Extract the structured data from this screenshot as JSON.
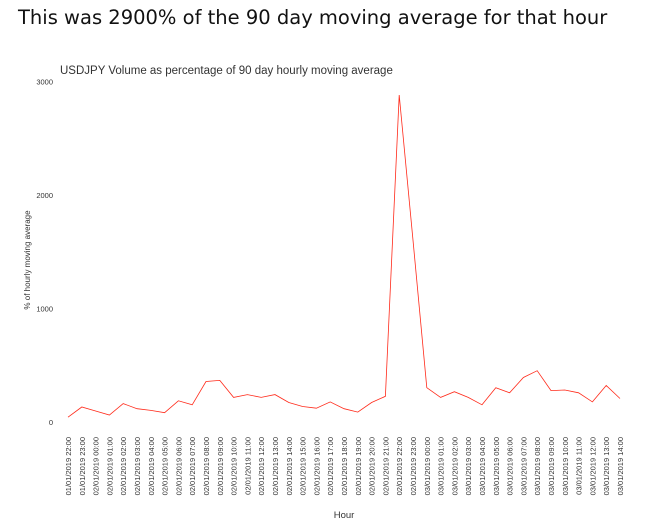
{
  "heading": "This was 2900% of the 90 day moving average for that hour",
  "chart_data": {
    "type": "line",
    "title": "USDJPY Volume as percentage of 90 day hourly moving average",
    "x_label": "Hour",
    "y_label": "% of hourly moving average",
    "categories": [
      "01/01/2019 22:00",
      "01/01/2019 23:00",
      "02/01/2019 00:00",
      "02/01/2019 01:00",
      "02/01/2019 02:00",
      "02/01/2019 03:00",
      "02/01/2019 04:00",
      "02/01/2019 05:00",
      "02/01/2019 06:00",
      "02/01/2019 07:00",
      "02/01/2019 08:00",
      "02/01/2019 09:00",
      "02/01/2019 10:00",
      "02/01/2019 11:00",
      "02/01/2019 12:00",
      "02/01/2019 13:00",
      "02/01/2019 14:00",
      "02/01/2019 15:00",
      "02/01/2019 16:00",
      "02/01/2019 17:00",
      "02/01/2019 18:00",
      "02/01/2019 19:00",
      "02/01/2019 20:00",
      "02/01/2019 21:00",
      "02/01/2019 22:00",
      "02/01/2019 23:00",
      "03/01/2019 00:00",
      "03/01/2019 01:00",
      "03/01/2019 02:00",
      "03/01/2019 03:00",
      "03/01/2019 04:00",
      "03/01/2019 05:00",
      "03/01/2019 06:00",
      "03/01/2019 07:00",
      "03/01/2019 08:00",
      "03/01/2019 09:00",
      "03/01/2019 10:00",
      "03/01/2019 11:00",
      "03/01/2019 12:00",
      "03/01/2019 13:00",
      "03/01/2019 14:00"
    ],
    "values": [
      40,
      130,
      95,
      60,
      160,
      115,
      100,
      80,
      185,
      150,
      355,
      365,
      215,
      240,
      215,
      240,
      170,
      135,
      120,
      175,
      115,
      85,
      170,
      225,
      2880,
      1600,
      300,
      215,
      265,
      215,
      150,
      300,
      255,
      390,
      450,
      275,
      280,
      255,
      175,
      320,
      205
    ],
    "color": "#ff2a1a",
    "ylim": [
      -90,
      3100
    ],
    "yticks": [
      0,
      1000,
      2000,
      3000
    ],
    "grid": false
  }
}
